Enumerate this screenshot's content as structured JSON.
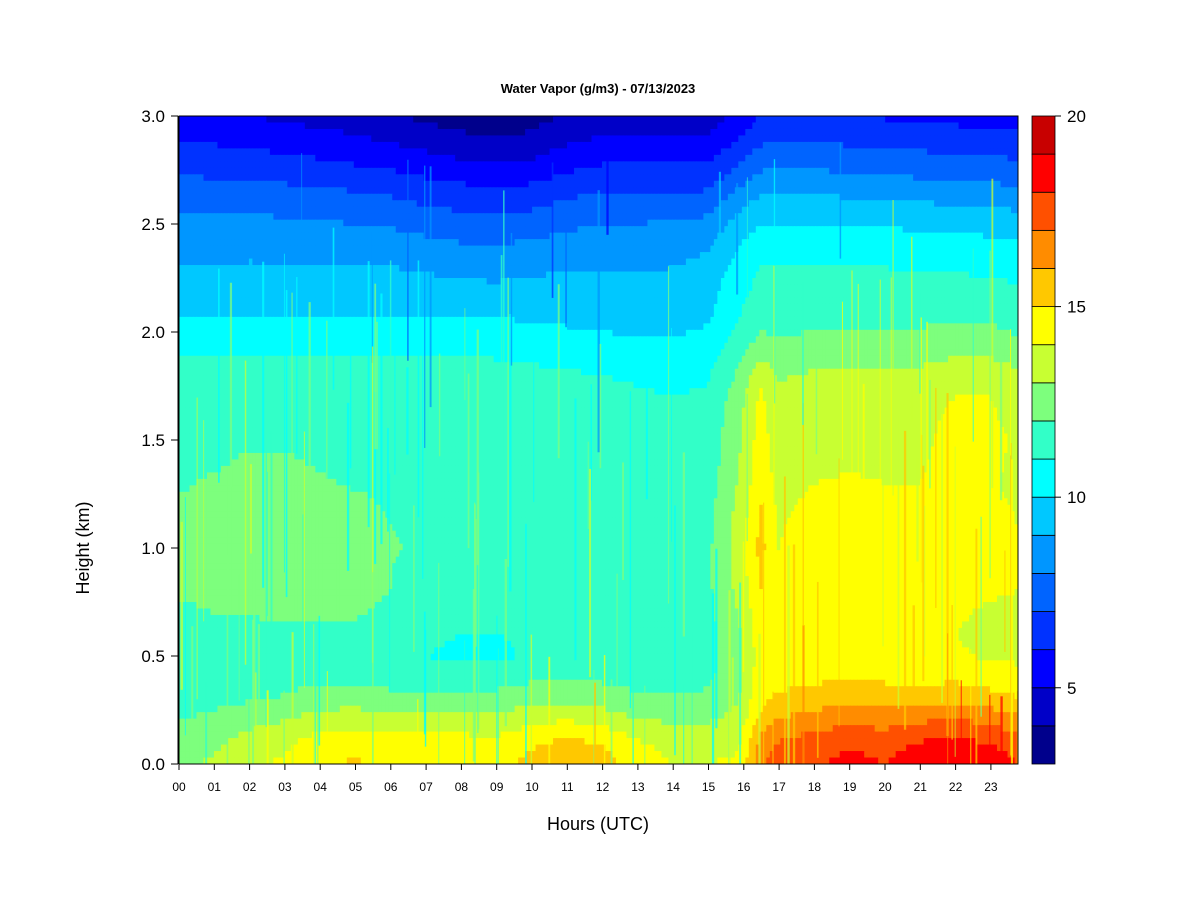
{
  "chart_data": {
    "type": "heatmap",
    "title": "Water Vapor (g/m3) - 07/13/2023",
    "xlabel": "Hours (UTC)",
    "ylabel": "Height (km)",
    "xlim": [
      0,
      23.8
    ],
    "ylim": [
      0,
      3.0
    ],
    "x_ticks": [
      "00",
      "01",
      "02",
      "03",
      "04",
      "05",
      "06",
      "07",
      "08",
      "09",
      "10",
      "11",
      "12",
      "13",
      "14",
      "15",
      "16",
      "17",
      "18",
      "19",
      "20",
      "21",
      "22",
      "23"
    ],
    "y_ticks": [
      "0.0",
      "0.5",
      "1.0",
      "1.5",
      "2.0",
      "2.5",
      "3.0"
    ],
    "y_tick_values": [
      0,
      0.5,
      1.0,
      1.5,
      2.0,
      2.5,
      3.0
    ],
    "grid": false,
    "colorbar": {
      "min": 3,
      "max": 20,
      "levels": [
        3,
        4,
        5,
        6,
        7,
        8,
        9,
        10,
        11,
        12,
        13,
        14,
        15,
        16,
        17,
        18,
        19,
        20
      ],
      "tick_values": [
        5,
        10,
        15,
        20
      ],
      "tick_labels": [
        "5",
        "10",
        "15",
        "20"
      ],
      "colors": [
        "#00008c",
        "#0000c8",
        "#0000ff",
        "#0032ff",
        "#0064ff",
        "#0096ff",
        "#00c8ff",
        "#00ffff",
        "#32ffc8",
        "#7dff7d",
        "#c8ff32",
        "#ffff00",
        "#ffc800",
        "#ff8c00",
        "#ff5000",
        "#ff0000",
        "#c80000",
        "#820000"
      ],
      "placement": "right"
    },
    "x_hours": [
      0,
      1,
      2,
      3,
      4,
      5,
      6,
      7,
      8,
      9,
      10,
      11,
      12,
      13,
      14,
      15,
      15.9,
      16.5,
      17,
      18,
      19,
      20,
      21,
      22,
      23,
      23.8
    ],
    "y_heights": [
      0.0,
      0.05,
      0.1,
      0.15,
      0.2,
      0.25,
      0.3,
      0.4,
      0.5,
      0.6,
      0.7,
      0.8,
      0.9,
      1.0,
      1.1,
      1.2,
      1.3,
      1.4,
      1.5,
      1.6,
      1.7,
      1.8,
      1.9,
      2.0,
      2.1,
      2.2,
      2.3,
      2.4,
      2.5,
      2.6,
      2.7,
      2.8,
      2.9,
      3.0
    ],
    "values": [
      [
        12.8,
        13.2,
        13.8,
        14.2,
        14.9,
        15.1,
        14.8,
        14.9,
        14.8,
        14.6,
        15.3,
        15.8,
        15.4,
        14.6,
        14.0,
        14.0,
        14.2,
        16.8,
        17.5,
        17.9,
        18.3,
        18.0,
        18.6,
        18.9,
        18.5,
        18.0
      ],
      [
        12.6,
        13.0,
        13.6,
        14.0,
        14.7,
        14.9,
        14.6,
        14.7,
        14.6,
        14.4,
        15.1,
        15.5,
        15.2,
        14.4,
        13.8,
        13.8,
        14.0,
        16.6,
        17.3,
        17.7,
        18.1,
        17.8,
        18.4,
        18.7,
        18.3,
        17.8
      ],
      [
        12.4,
        12.8,
        13.4,
        13.8,
        14.4,
        14.6,
        14.3,
        14.4,
        14.3,
        14.2,
        14.8,
        15.2,
        14.9,
        14.1,
        13.6,
        13.6,
        13.9,
        16.3,
        17.0,
        17.4,
        17.8,
        17.5,
        18.0,
        18.3,
        17.9,
        17.4
      ],
      [
        12.2,
        12.6,
        13.1,
        13.5,
        14.0,
        14.1,
        13.9,
        13.9,
        13.9,
        13.8,
        14.3,
        14.6,
        14.3,
        13.7,
        13.3,
        13.3,
        13.7,
        15.9,
        16.6,
        17.0,
        17.3,
        17.1,
        17.5,
        17.8,
        17.4,
        16.9
      ],
      [
        12.0,
        12.3,
        12.7,
        13.0,
        13.5,
        13.6,
        13.4,
        13.4,
        13.4,
        13.3,
        13.8,
        14.0,
        13.7,
        13.1,
        12.9,
        12.9,
        13.4,
        15.4,
        16.1,
        16.5,
        16.7,
        16.6,
        16.9,
        17.1,
        16.8,
        16.3
      ],
      [
        11.7,
        12.0,
        12.3,
        12.6,
        13.0,
        13.1,
        12.9,
        12.9,
        12.9,
        12.8,
        13.3,
        13.4,
        13.1,
        12.6,
        12.5,
        12.5,
        13.2,
        15.0,
        15.6,
        16.0,
        16.2,
        16.1,
        16.3,
        16.4,
        16.1,
        15.7
      ],
      [
        11.5,
        11.7,
        11.9,
        12.1,
        12.5,
        12.5,
        12.3,
        12.3,
        12.3,
        12.3,
        12.7,
        12.8,
        12.6,
        12.2,
        12.1,
        12.2,
        13.0,
        14.8,
        15.2,
        15.5,
        15.7,
        15.6,
        15.6,
        15.7,
        15.4,
        15.1
      ],
      [
        11.3,
        11.4,
        11.5,
        11.6,
        11.8,
        11.8,
        11.6,
        11.6,
        11.6,
        11.6,
        11.8,
        11.9,
        11.8,
        11.6,
        11.6,
        11.8,
        12.8,
        14.6,
        14.6,
        14.8,
        14.9,
        14.8,
        14.7,
        14.8,
        14.5,
        14.3
      ],
      [
        11.2,
        11.3,
        11.4,
        11.5,
        11.6,
        11.6,
        11.4,
        11.0,
        10.8,
        10.7,
        11.2,
        11.5,
        11.5,
        11.4,
        11.3,
        11.6,
        12.8,
        14.5,
        14.3,
        14.4,
        14.5,
        14.3,
        14.1,
        14.1,
        13.9,
        13.8
      ],
      [
        11.4,
        11.5,
        11.6,
        11.7,
        11.8,
        11.8,
        11.6,
        11.2,
        11.0,
        10.9,
        11.4,
        11.6,
        11.6,
        11.5,
        11.4,
        11.6,
        12.9,
        14.6,
        14.1,
        14.3,
        14.4,
        14.2,
        14.0,
        14.0,
        13.8,
        13.7
      ],
      [
        11.8,
        12.0,
        12.1,
        12.2,
        12.2,
        12.1,
        11.8,
        11.6,
        11.6,
        11.6,
        11.7,
        11.8,
        11.8,
        11.7,
        11.6,
        11.7,
        13.1,
        14.8,
        14.0,
        14.4,
        14.5,
        14.3,
        14.1,
        14.1,
        13.9,
        13.8
      ],
      [
        12.1,
        12.3,
        12.4,
        12.5,
        12.5,
        12.3,
        12.0,
        11.8,
        11.8,
        11.8,
        11.9,
        11.9,
        11.9,
        11.8,
        11.7,
        11.8,
        13.3,
        15.0,
        14.0,
        14.5,
        14.6,
        14.4,
        14.2,
        14.3,
        14.1,
        14.0
      ],
      [
        12.3,
        12.5,
        12.6,
        12.6,
        12.6,
        12.5,
        12.0,
        11.8,
        11.8,
        11.8,
        11.9,
        11.9,
        11.9,
        11.8,
        11.7,
        11.8,
        13.4,
        15.2,
        14.0,
        14.5,
        14.6,
        14.5,
        14.3,
        14.4,
        14.3,
        14.1
      ],
      [
        12.4,
        12.6,
        12.7,
        12.7,
        12.7,
        12.6,
        12.1,
        11.8,
        11.8,
        11.8,
        11.9,
        11.9,
        11.9,
        11.8,
        11.7,
        11.8,
        13.5,
        15.3,
        14.0,
        14.5,
        14.6,
        14.5,
        14.4,
        14.5,
        14.4,
        14.1
      ],
      [
        12.3,
        12.5,
        12.6,
        12.6,
        12.6,
        12.5,
        12.0,
        11.8,
        11.8,
        11.8,
        11.8,
        11.8,
        11.8,
        11.7,
        11.6,
        11.7,
        13.4,
        15.2,
        13.9,
        14.4,
        14.5,
        14.4,
        14.3,
        14.4,
        14.3,
        14.0
      ],
      [
        12.1,
        12.3,
        12.4,
        12.5,
        12.4,
        12.2,
        11.9,
        11.7,
        11.7,
        11.7,
        11.8,
        11.8,
        11.7,
        11.6,
        11.5,
        11.6,
        13.3,
        15.0,
        13.8,
        14.2,
        14.3,
        14.2,
        14.1,
        14.3,
        14.2,
        13.9
      ],
      [
        11.9,
        12.1,
        12.3,
        12.3,
        12.1,
        11.9,
        11.8,
        11.6,
        11.6,
        11.6,
        11.7,
        11.7,
        11.6,
        11.5,
        11.4,
        11.5,
        13.1,
        14.8,
        13.6,
        14.0,
        14.1,
        14.0,
        14.0,
        14.2,
        14.1,
        13.8
      ],
      [
        11.8,
        11.9,
        12.1,
        12.1,
        11.9,
        11.8,
        11.7,
        11.6,
        11.6,
        11.6,
        11.6,
        11.6,
        11.5,
        11.4,
        11.3,
        11.4,
        13.0,
        14.6,
        13.5,
        13.8,
        13.9,
        13.8,
        13.9,
        14.3,
        14.2,
        13.8
      ],
      [
        11.7,
        11.8,
        11.9,
        11.9,
        11.8,
        11.7,
        11.6,
        11.5,
        11.5,
        11.6,
        11.5,
        11.5,
        11.4,
        11.3,
        11.2,
        11.3,
        12.9,
        14.5,
        13.4,
        13.7,
        13.8,
        13.7,
        13.8,
        14.3,
        14.2,
        13.9
      ],
      [
        11.6,
        11.7,
        11.8,
        11.8,
        11.7,
        11.6,
        11.5,
        11.5,
        11.5,
        11.6,
        11.5,
        11.4,
        11.3,
        11.2,
        11.1,
        11.2,
        12.8,
        14.4,
        13.3,
        13.6,
        13.7,
        13.6,
        13.7,
        14.2,
        14.1,
        13.8
      ],
      [
        11.5,
        11.6,
        11.6,
        11.6,
        11.6,
        11.5,
        11.4,
        11.4,
        11.4,
        11.5,
        11.4,
        11.3,
        11.2,
        11.1,
        11.0,
        11.1,
        12.6,
        14.2,
        13.2,
        13.5,
        13.6,
        13.5,
        13.6,
        14.0,
        14.0,
        13.7
      ],
      [
        11.3,
        11.4,
        11.4,
        11.4,
        11.4,
        11.3,
        11.3,
        11.3,
        11.3,
        11.3,
        11.2,
        11.1,
        11.0,
        10.9,
        10.8,
        10.9,
        12.2,
        13.6,
        12.9,
        13.1,
        13.2,
        13.1,
        13.2,
        13.5,
        13.5,
        13.2
      ],
      [
        10.9,
        11.0,
        11.0,
        11.0,
        11.0,
        10.9,
        10.9,
        10.9,
        10.9,
        10.9,
        10.8,
        10.7,
        10.6,
        10.5,
        10.4,
        10.6,
        11.7,
        12.8,
        12.5,
        12.6,
        12.7,
        12.6,
        12.7,
        12.9,
        12.9,
        12.6
      ],
      [
        10.3,
        10.3,
        10.3,
        10.3,
        10.3,
        10.3,
        10.3,
        10.3,
        10.3,
        10.3,
        10.2,
        10.1,
        10.0,
        9.9,
        9.9,
        10.1,
        11.2,
        12.0,
        11.9,
        12.0,
        12.1,
        12.0,
        12.1,
        12.2,
        12.2,
        11.9
      ],
      [
        9.9,
        9.9,
        9.9,
        9.9,
        9.9,
        9.9,
        9.9,
        9.9,
        9.8,
        9.8,
        9.8,
        9.7,
        9.6,
        9.6,
        9.6,
        9.8,
        10.9,
        11.6,
        11.6,
        11.7,
        11.7,
        11.6,
        11.6,
        11.7,
        11.7,
        11.5
      ],
      [
        9.5,
        9.5,
        9.5,
        9.5,
        9.5,
        9.5,
        9.4,
        9.3,
        9.2,
        9.2,
        9.3,
        9.3,
        9.3,
        9.3,
        9.3,
        9.6,
        10.7,
        11.3,
        11.3,
        11.4,
        11.4,
        11.3,
        11.3,
        11.3,
        11.2,
        11.1
      ],
      [
        9.1,
        9.1,
        9.1,
        9.1,
        9.1,
        9.1,
        9.0,
        8.9,
        8.7,
        8.6,
        8.8,
        8.9,
        8.9,
        8.9,
        9.0,
        9.3,
        10.4,
        11.0,
        11.0,
        11.1,
        11.1,
        11.0,
        10.9,
        10.9,
        10.8,
        10.7
      ],
      [
        8.7,
        8.7,
        8.7,
        8.7,
        8.7,
        8.6,
        8.5,
        8.3,
        8.1,
        8.0,
        8.2,
        8.4,
        8.5,
        8.5,
        8.6,
        8.9,
        10.0,
        10.6,
        10.6,
        10.6,
        10.6,
        10.5,
        10.4,
        10.4,
        10.3,
        10.2
      ],
      [
        8.2,
        8.2,
        8.2,
        8.2,
        8.1,
        8.0,
        7.9,
        7.6,
        7.4,
        7.3,
        7.5,
        7.8,
        8.0,
        8.0,
        8.1,
        8.3,
        9.4,
        10.0,
        10.0,
        10.0,
        10.0,
        9.9,
        9.8,
        9.7,
        9.6,
        9.5
      ],
      [
        7.7,
        7.7,
        7.7,
        7.6,
        7.5,
        7.4,
        7.2,
        6.9,
        6.7,
        6.5,
        6.7,
        7.1,
        7.4,
        7.4,
        7.4,
        7.5,
        8.6,
        9.3,
        9.3,
        9.3,
        9.2,
        9.1,
        9.0,
        8.9,
        8.8,
        8.7
      ],
      [
        7.1,
        7.1,
        7.0,
        6.9,
        6.8,
        6.6,
        6.4,
        6.1,
        5.9,
        5.7,
        5.9,
        6.3,
        6.6,
        6.6,
        6.6,
        6.6,
        7.7,
        8.4,
        8.4,
        8.4,
        8.3,
        8.2,
        8.1,
        8.0,
        7.9,
        7.8
      ],
      [
        6.5,
        6.4,
        6.3,
        6.2,
        6.0,
        5.8,
        5.6,
        5.3,
        5.0,
        4.8,
        5.0,
        5.5,
        5.8,
        5.8,
        5.8,
        5.8,
        6.8,
        7.5,
        7.6,
        7.6,
        7.5,
        7.4,
        7.3,
        7.2,
        7.1,
        7.0
      ],
      [
        5.9,
        5.8,
        5.6,
        5.5,
        5.3,
        5.1,
        4.8,
        4.5,
        4.2,
        4.0,
        4.2,
        4.7,
        5.1,
        5.1,
        5.1,
        5.1,
        6.0,
        6.7,
        6.8,
        6.8,
        6.7,
        6.6,
        6.5,
        6.4,
        6.3,
        6.2
      ],
      [
        5.4,
        5.2,
        5.0,
        4.8,
        4.6,
        4.4,
        4.1,
        3.8,
        3.5,
        3.3,
        3.6,
        4.1,
        4.5,
        4.5,
        4.5,
        4.5,
        5.3,
        6.0,
        6.1,
        6.1,
        6.0,
        5.9,
        5.8,
        5.7,
        5.6,
        5.5
      ]
    ]
  }
}
